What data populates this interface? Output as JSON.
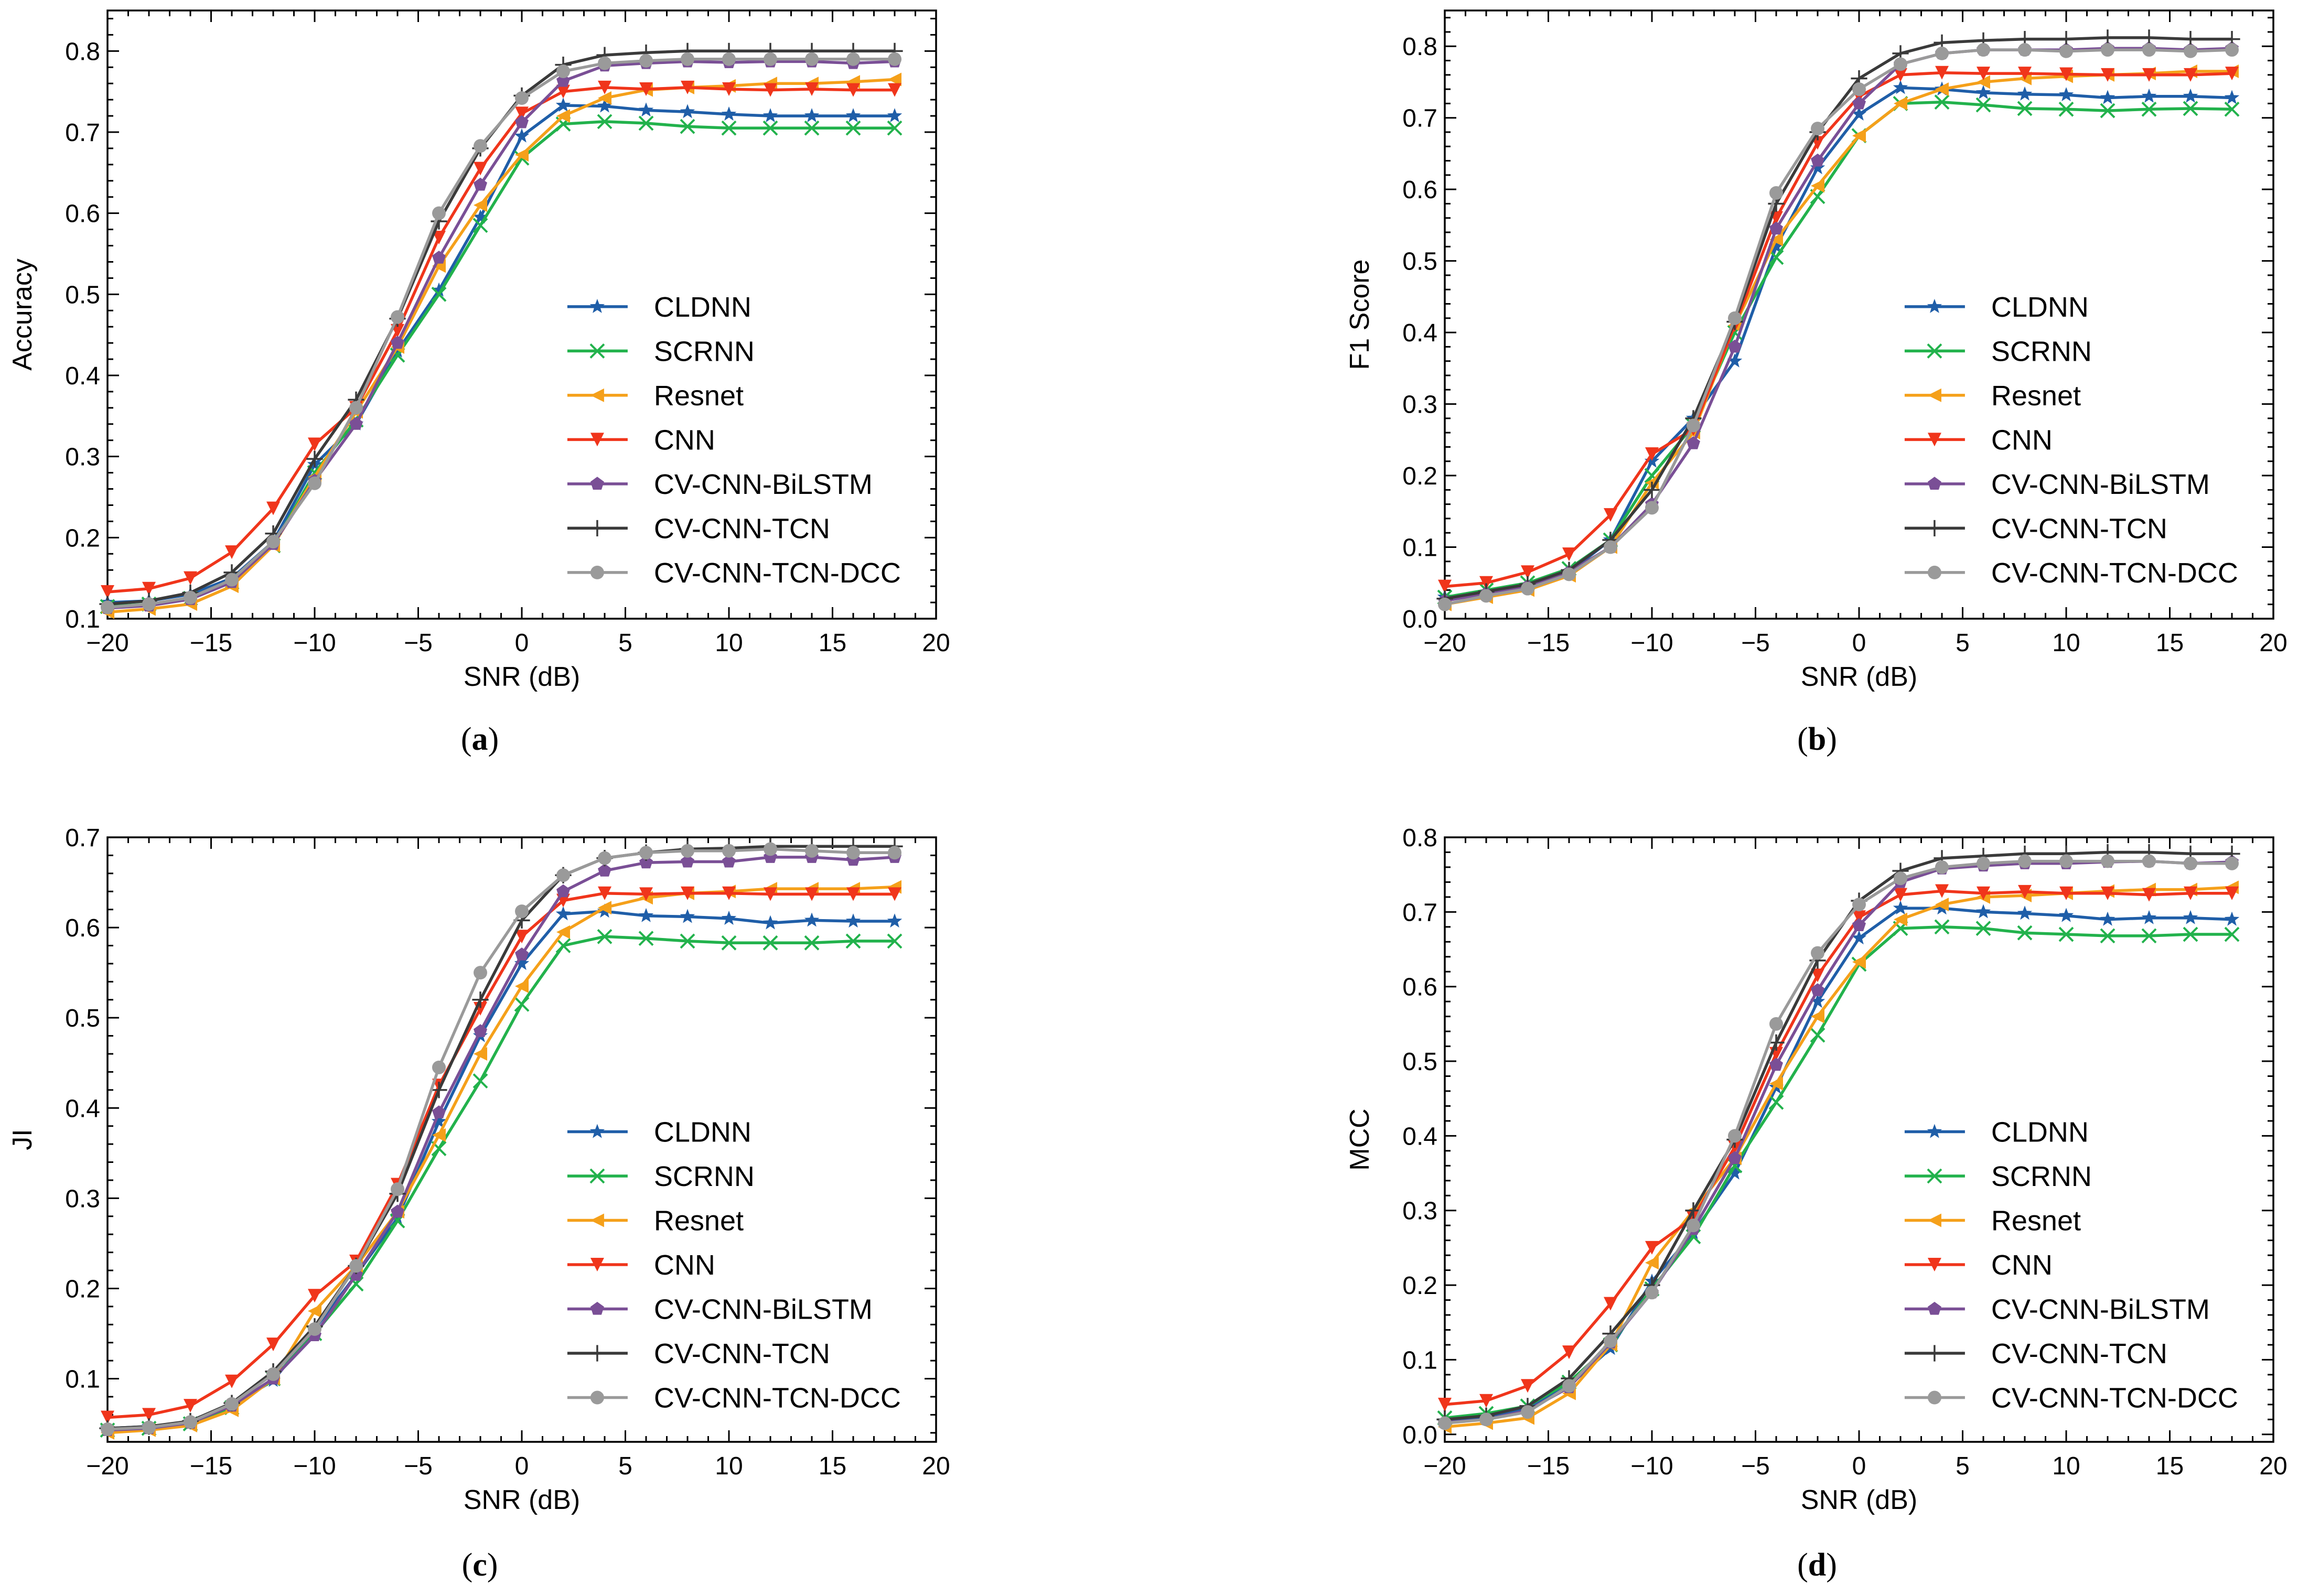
{
  "colors": {
    "CLDNN": "#1f5ea8",
    "SCRNN": "#22b24c",
    "Resnet": "#f5a01a",
    "CNN": "#f0351b",
    "CV-CNN-BiLSTM": "#7a4f96",
    "CV-CNN-TCN": "#3a3a3a",
    "CV-CNN-TCN-DCC": "#9a9a9a"
  },
  "markers": {
    "CLDNN": "star",
    "SCRNN": "x",
    "Resnet": "triangle-left",
    "CNN": "triangle-down",
    "CV-CNN-BiLSTM": "pentagon",
    "CV-CNN-TCN": "plus",
    "CV-CNN-TCN-DCC": "circle"
  },
  "chart_data": [
    {
      "type": "line",
      "caption": "a",
      "xlabel": "SNR (dB)",
      "ylabel": "Accuracy",
      "xlim": [
        -20,
        20
      ],
      "ylim": [
        0.1,
        0.85
      ],
      "xticks": [
        -20,
        -15,
        -10,
        -5,
        0,
        5,
        10,
        15,
        20
      ],
      "yticks": [
        0.1,
        0.2,
        0.3,
        0.4,
        0.5,
        0.6,
        0.7,
        0.8
      ],
      "x": [
        -20,
        -18,
        -16,
        -14,
        -12,
        -10,
        -8,
        -6,
        -4,
        -2,
        0,
        2,
        4,
        6,
        8,
        10,
        12,
        14,
        16,
        18
      ],
      "legend_loc": "lower-right",
      "series": [
        {
          "name": "CLDNN",
          "values": [
            0.12,
            0.122,
            0.13,
            0.15,
            0.195,
            0.29,
            0.34,
            0.43,
            0.505,
            0.595,
            0.695,
            0.733,
            0.732,
            0.727,
            0.725,
            0.722,
            0.72,
            0.72,
            0.72,
            0.72
          ]
        },
        {
          "name": "SCRNN",
          "values": [
            0.115,
            0.118,
            0.125,
            0.145,
            0.19,
            0.28,
            0.345,
            0.425,
            0.5,
            0.585,
            0.668,
            0.71,
            0.713,
            0.711,
            0.707,
            0.705,
            0.705,
            0.705,
            0.705,
            0.705
          ]
        },
        {
          "name": "Resnet",
          "values": [
            0.108,
            0.112,
            0.118,
            0.14,
            0.19,
            0.275,
            0.355,
            0.435,
            0.535,
            0.61,
            0.672,
            0.72,
            0.742,
            0.752,
            0.755,
            0.757,
            0.76,
            0.76,
            0.762,
            0.765
          ]
        },
        {
          "name": "CNN",
          "values": [
            0.133,
            0.137,
            0.15,
            0.182,
            0.236,
            0.315,
            0.36,
            0.455,
            0.57,
            0.655,
            0.723,
            0.75,
            0.755,
            0.753,
            0.755,
            0.753,
            0.752,
            0.753,
            0.752,
            0.752
          ]
        },
        {
          "name": "CV-CNN-BiLSTM",
          "values": [
            0.113,
            0.116,
            0.124,
            0.145,
            0.192,
            0.27,
            0.34,
            0.44,
            0.545,
            0.635,
            0.712,
            0.763,
            0.782,
            0.785,
            0.787,
            0.786,
            0.787,
            0.787,
            0.785,
            0.787
          ]
        },
        {
          "name": "CV-CNN-TCN",
          "values": [
            0.118,
            0.122,
            0.132,
            0.157,
            0.205,
            0.297,
            0.37,
            0.47,
            0.59,
            0.68,
            0.745,
            0.783,
            0.795,
            0.798,
            0.8,
            0.8,
            0.8,
            0.8,
            0.8,
            0.8
          ]
        },
        {
          "name": "CV-CNN-TCN-DCC",
          "values": [
            0.114,
            0.118,
            0.126,
            0.148,
            0.195,
            0.267,
            0.36,
            0.472,
            0.6,
            0.683,
            0.742,
            0.775,
            0.785,
            0.788,
            0.79,
            0.79,
            0.79,
            0.79,
            0.79,
            0.79
          ]
        }
      ]
    },
    {
      "type": "line",
      "caption": "b",
      "xlabel": "SNR (dB)",
      "ylabel": "F1 Score",
      "xlim": [
        -20,
        20
      ],
      "ylim": [
        0.0,
        0.85
      ],
      "xticks": [
        -20,
        -15,
        -10,
        -5,
        0,
        5,
        10,
        15,
        20
      ],
      "yticks": [
        0.0,
        0.1,
        0.2,
        0.3,
        0.4,
        0.5,
        0.6,
        0.7,
        0.8
      ],
      "x": [
        -20,
        -18,
        -16,
        -14,
        -12,
        -10,
        -8,
        -6,
        -4,
        -2,
        0,
        2,
        4,
        6,
        8,
        10,
        12,
        14,
        16,
        18
      ],
      "legend_loc": "lower-right",
      "series": [
        {
          "name": "CLDNN",
          "values": [
            0.03,
            0.035,
            0.045,
            0.065,
            0.11,
            0.22,
            0.28,
            0.36,
            0.52,
            0.63,
            0.705,
            0.742,
            0.74,
            0.735,
            0.733,
            0.732,
            0.728,
            0.73,
            0.73,
            0.728
          ]
        },
        {
          "name": "SCRNN",
          "values": [
            0.03,
            0.04,
            0.05,
            0.07,
            0.11,
            0.2,
            0.27,
            0.4,
            0.505,
            0.59,
            0.675,
            0.72,
            0.722,
            0.718,
            0.713,
            0.712,
            0.71,
            0.712,
            0.713,
            0.712
          ]
        },
        {
          "name": "Resnet",
          "values": [
            0.02,
            0.03,
            0.04,
            0.06,
            0.1,
            0.19,
            0.26,
            0.41,
            0.53,
            0.605,
            0.675,
            0.72,
            0.74,
            0.75,
            0.755,
            0.758,
            0.76,
            0.762,
            0.765,
            0.765
          ]
        },
        {
          "name": "CNN",
          "values": [
            0.045,
            0.05,
            0.065,
            0.09,
            0.145,
            0.23,
            0.265,
            0.41,
            0.56,
            0.665,
            0.73,
            0.76,
            0.763,
            0.762,
            0.762,
            0.761,
            0.76,
            0.76,
            0.76,
            0.762
          ]
        },
        {
          "name": "CV-CNN-BiLSTM",
          "values": [
            0.025,
            0.035,
            0.045,
            0.065,
            0.1,
            0.16,
            0.245,
            0.38,
            0.545,
            0.64,
            0.72,
            0.775,
            0.79,
            0.795,
            0.795,
            0.795,
            0.797,
            0.797,
            0.795,
            0.797
          ]
        },
        {
          "name": "CV-CNN-TCN",
          "values": [
            0.028,
            0.038,
            0.048,
            0.068,
            0.11,
            0.18,
            0.28,
            0.415,
            0.58,
            0.68,
            0.755,
            0.79,
            0.805,
            0.808,
            0.81,
            0.81,
            0.812,
            0.812,
            0.81,
            0.81
          ]
        },
        {
          "name": "CV-CNN-TCN-DCC",
          "values": [
            0.02,
            0.032,
            0.042,
            0.062,
            0.1,
            0.155,
            0.27,
            0.42,
            0.595,
            0.685,
            0.74,
            0.775,
            0.79,
            0.795,
            0.795,
            0.793,
            0.795,
            0.795,
            0.793,
            0.795
          ]
        }
      ]
    },
    {
      "type": "line",
      "caption": "c",
      "xlabel": "SNR (dB)",
      "ylabel": "JI",
      "xlim": [
        -20,
        20
      ],
      "ylim": [
        0.03,
        0.7
      ],
      "xticks": [
        -20,
        -15,
        -10,
        -5,
        0,
        5,
        10,
        15,
        20
      ],
      "yticks": [
        0.1,
        0.2,
        0.3,
        0.4,
        0.5,
        0.6,
        0.7
      ],
      "x": [
        -20,
        -18,
        -16,
        -14,
        -12,
        -10,
        -8,
        -6,
        -4,
        -2,
        0,
        2,
        4,
        6,
        8,
        10,
        12,
        14,
        16,
        18
      ],
      "legend_loc": "lower-right",
      "series": [
        {
          "name": "CLDNN",
          "values": [
            0.045,
            0.047,
            0.052,
            0.07,
            0.098,
            0.155,
            0.215,
            0.278,
            0.385,
            0.48,
            0.56,
            0.615,
            0.618,
            0.613,
            0.612,
            0.61,
            0.605,
            0.608,
            0.607,
            0.607
          ]
        },
        {
          "name": "SCRNN",
          "values": [
            0.043,
            0.045,
            0.05,
            0.068,
            0.1,
            0.15,
            0.205,
            0.275,
            0.355,
            0.43,
            0.515,
            0.58,
            0.59,
            0.588,
            0.585,
            0.583,
            0.583,
            0.583,
            0.585,
            0.585
          ]
        },
        {
          "name": "Resnet",
          "values": [
            0.04,
            0.043,
            0.048,
            0.065,
            0.1,
            0.175,
            0.225,
            0.285,
            0.37,
            0.46,
            0.535,
            0.595,
            0.622,
            0.633,
            0.638,
            0.64,
            0.643,
            0.643,
            0.643,
            0.645
          ]
        },
        {
          "name": "CNN",
          "values": [
            0.057,
            0.06,
            0.07,
            0.097,
            0.138,
            0.192,
            0.23,
            0.315,
            0.425,
            0.51,
            0.59,
            0.63,
            0.638,
            0.637,
            0.638,
            0.638,
            0.637,
            0.637,
            0.637,
            0.637
          ]
        },
        {
          "name": "CV-CNN-BiLSTM",
          "values": [
            0.043,
            0.045,
            0.051,
            0.07,
            0.1,
            0.148,
            0.215,
            0.285,
            0.395,
            0.485,
            0.57,
            0.64,
            0.663,
            0.672,
            0.673,
            0.673,
            0.678,
            0.678,
            0.675,
            0.678
          ]
        },
        {
          "name": "CV-CNN-TCN",
          "values": [
            0.045,
            0.047,
            0.053,
            0.073,
            0.108,
            0.158,
            0.225,
            0.305,
            0.42,
            0.52,
            0.608,
            0.658,
            0.677,
            0.683,
            0.687,
            0.688,
            0.69,
            0.69,
            0.69,
            0.69
          ]
        },
        {
          "name": "CV-CNN-TCN-DCC",
          "values": [
            0.044,
            0.046,
            0.052,
            0.072,
            0.105,
            0.155,
            0.225,
            0.31,
            0.445,
            0.55,
            0.618,
            0.658,
            0.677,
            0.683,
            0.685,
            0.685,
            0.687,
            0.685,
            0.683,
            0.683
          ]
        }
      ]
    },
    {
      "type": "line",
      "caption": "d",
      "xlabel": "SNR (dB)",
      "ylabel": "MCC",
      "xlim": [
        -20,
        20
      ],
      "ylim": [
        -0.01,
        0.8
      ],
      "xticks": [
        -20,
        -15,
        -10,
        -5,
        0,
        5,
        10,
        15,
        20
      ],
      "yticks": [
        0.0,
        0.1,
        0.2,
        0.3,
        0.4,
        0.5,
        0.6,
        0.7,
        0.8
      ],
      "x": [
        -20,
        -18,
        -16,
        -14,
        -12,
        -10,
        -8,
        -6,
        -4,
        -2,
        0,
        2,
        4,
        6,
        8,
        10,
        12,
        14,
        16,
        18
      ],
      "legend_loc": "lower-right",
      "series": [
        {
          "name": "CLDNN",
          "values": [
            0.018,
            0.022,
            0.035,
            0.065,
            0.115,
            0.205,
            0.27,
            0.35,
            0.465,
            0.58,
            0.665,
            0.705,
            0.705,
            0.7,
            0.698,
            0.695,
            0.69,
            0.692,
            0.692,
            0.69
          ]
        },
        {
          "name": "SCRNN",
          "values": [
            0.022,
            0.028,
            0.038,
            0.07,
            0.12,
            0.195,
            0.265,
            0.36,
            0.445,
            0.535,
            0.63,
            0.678,
            0.68,
            0.678,
            0.672,
            0.67,
            0.668,
            0.668,
            0.67,
            0.67
          ]
        },
        {
          "name": "Resnet",
          "values": [
            0.01,
            0.015,
            0.022,
            0.055,
            0.12,
            0.23,
            0.3,
            0.37,
            0.47,
            0.56,
            0.633,
            0.69,
            0.71,
            0.72,
            0.722,
            0.725,
            0.728,
            0.73,
            0.73,
            0.733
          ]
        },
        {
          "name": "CNN",
          "values": [
            0.04,
            0.045,
            0.065,
            0.11,
            0.175,
            0.25,
            0.29,
            0.385,
            0.51,
            0.615,
            0.693,
            0.723,
            0.728,
            0.725,
            0.727,
            0.725,
            0.725,
            0.723,
            0.725,
            0.725
          ]
        },
        {
          "name": "CV-CNN-BiLSTM",
          "values": [
            0.016,
            0.02,
            0.032,
            0.063,
            0.123,
            0.19,
            0.275,
            0.37,
            0.495,
            0.595,
            0.682,
            0.74,
            0.758,
            0.762,
            0.765,
            0.765,
            0.767,
            0.768,
            0.765,
            0.767
          ]
        },
        {
          "name": "CV-CNN-TCN",
          "values": [
            0.02,
            0.025,
            0.038,
            0.075,
            0.135,
            0.2,
            0.3,
            0.395,
            0.525,
            0.635,
            0.715,
            0.755,
            0.772,
            0.775,
            0.778,
            0.778,
            0.78,
            0.78,
            0.778,
            0.778
          ]
        },
        {
          "name": "CV-CNN-TCN-DCC",
          "values": [
            0.015,
            0.02,
            0.03,
            0.065,
            0.125,
            0.19,
            0.28,
            0.4,
            0.55,
            0.645,
            0.71,
            0.745,
            0.76,
            0.765,
            0.768,
            0.768,
            0.768,
            0.768,
            0.765,
            0.765
          ]
        }
      ]
    }
  ]
}
